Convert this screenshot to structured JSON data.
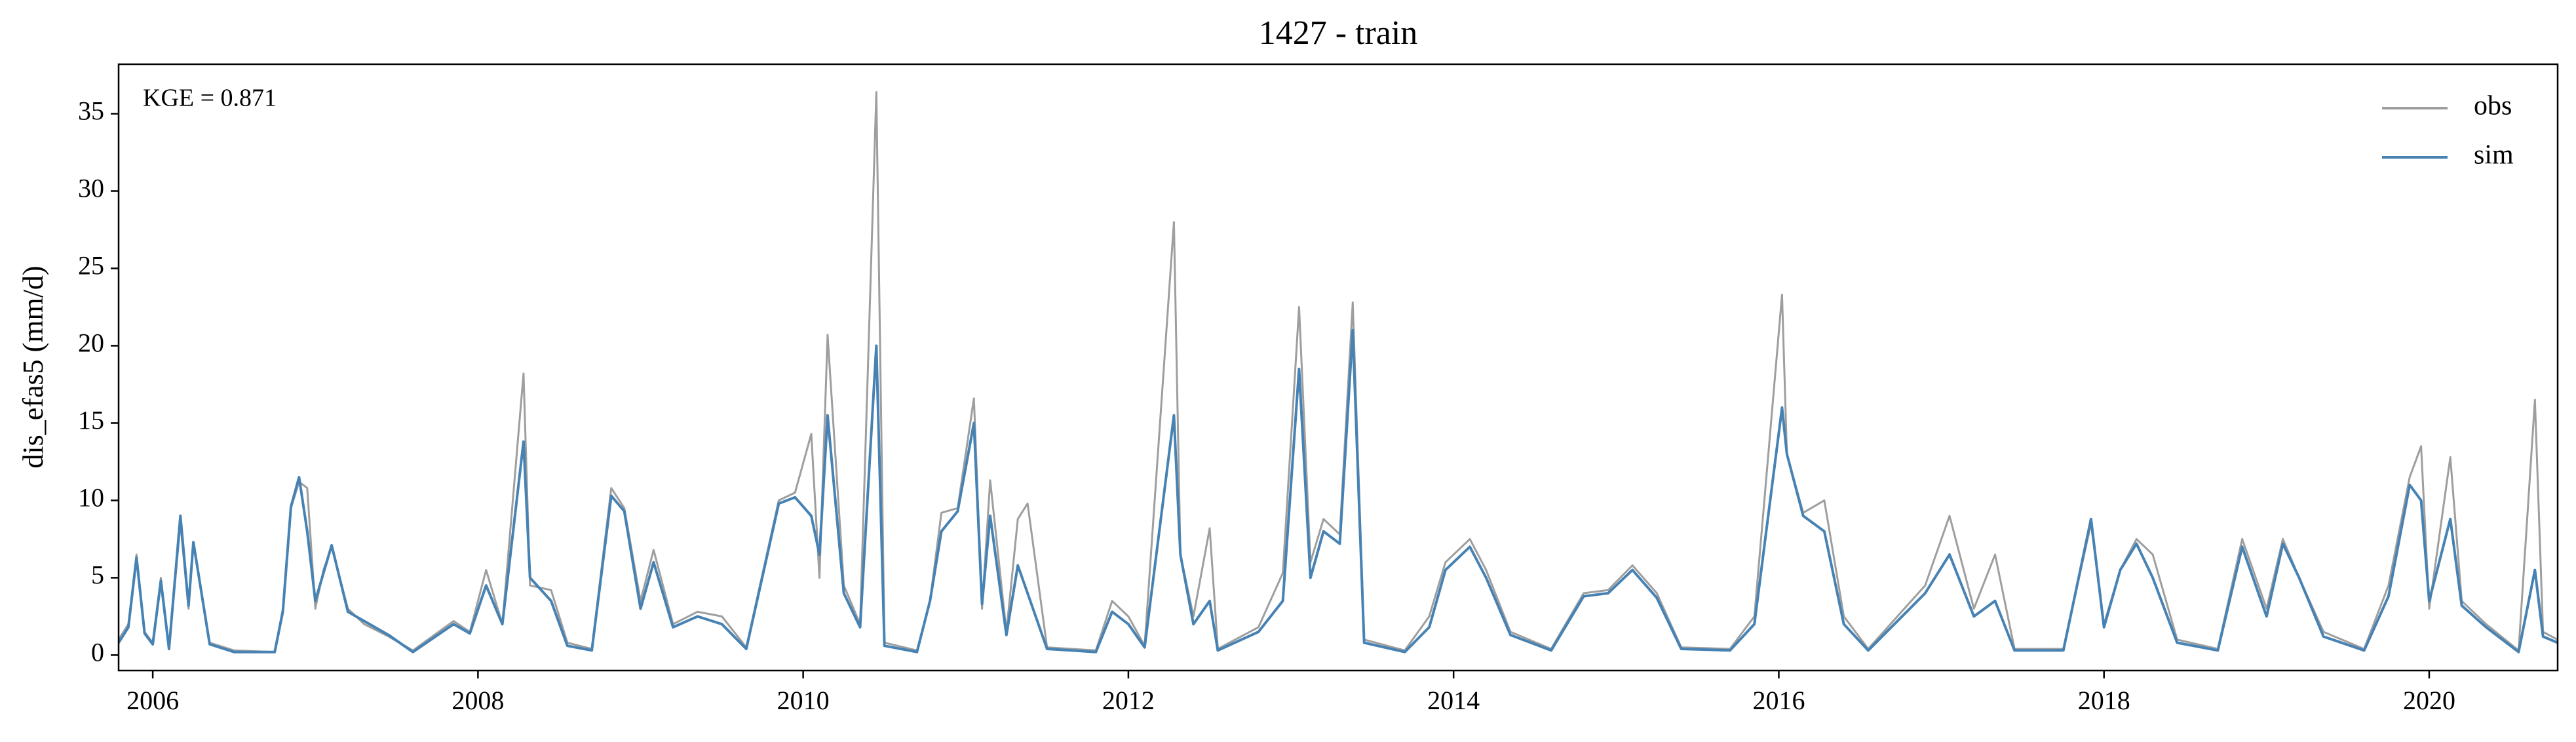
{
  "chart_data": {
    "type": "line",
    "title": "1427 - train",
    "y_label": "dis_efas5 (mm/d)",
    "annotation": "KGE = 0.871",
    "legend": "upper right",
    "xlim": [
      2005.79,
      2020.79
    ],
    "xticks": [
      2006,
      2008,
      2010,
      2012,
      2014,
      2016,
      2018,
      2020
    ],
    "ylim": [
      -1,
      38.2
    ],
    "yticks": [
      0,
      5,
      10,
      15,
      20,
      25,
      30,
      35
    ],
    "x": [
      2005.79,
      2005.85,
      2005.9,
      2005.95,
      2006.0,
      2006.05,
      2006.1,
      2006.17,
      2006.22,
      2006.25,
      2006.35,
      2006.5,
      2006.75,
      2006.8,
      2006.85,
      2006.9,
      2006.95,
      2007.0,
      2007.05,
      2007.1,
      2007.2,
      2007.3,
      2007.45,
      2007.6,
      2007.85,
      2007.95,
      2008.05,
      2008.15,
      2008.28,
      2008.32,
      2008.45,
      2008.55,
      2008.7,
      2008.82,
      2008.9,
      2009.0,
      2009.08,
      2009.2,
      2009.35,
      2009.5,
      2009.65,
      2009.85,
      2009.95,
      2010.05,
      2010.1,
      2010.15,
      2010.25,
      2010.35,
      2010.45,
      2010.5,
      2010.7,
      2010.78,
      2010.85,
      2010.95,
      2011.05,
      2011.1,
      2011.15,
      2011.25,
      2011.32,
      2011.38,
      2011.5,
      2011.8,
      2011.9,
      2012.0,
      2012.1,
      2012.28,
      2012.32,
      2012.4,
      2012.5,
      2012.55,
      2012.8,
      2012.95,
      2013.05,
      2013.12,
      2013.2,
      2013.3,
      2013.38,
      2013.45,
      2013.7,
      2013.85,
      2013.95,
      2014.1,
      2014.2,
      2014.35,
      2014.6,
      2014.8,
      2014.95,
      2015.1,
      2015.25,
      2015.4,
      2015.7,
      2015.85,
      2016.02,
      2016.05,
      2016.15,
      2016.28,
      2016.4,
      2016.55,
      2016.9,
      2017.05,
      2017.2,
      2017.33,
      2017.45,
      2017.75,
      2017.92,
      2018.0,
      2018.1,
      2018.2,
      2018.3,
      2018.45,
      2018.7,
      2018.85,
      2019.0,
      2019.1,
      2019.2,
      2019.35,
      2019.6,
      2019.75,
      2019.88,
      2019.95,
      2020.0,
      2020.13,
      2020.2,
      2020.35,
      2020.55,
      2020.65,
      2020.7,
      2020.79
    ],
    "series": [
      {
        "name": "obs",
        "color": "#9e9e9e",
        "values": [
          1.0,
          2.0,
          6.5,
          1.5,
          0.8,
          5.0,
          0.5,
          8.5,
          3.0,
          7.3,
          0.8,
          0.3,
          0.2,
          3.0,
          9.5,
          11.2,
          10.8,
          3.0,
          5.5,
          7.0,
          3.0,
          2.0,
          1.2,
          0.3,
          2.2,
          1.5,
          5.5,
          2.0,
          18.2,
          4.5,
          4.2,
          0.8,
          0.4,
          10.8,
          9.5,
          3.5,
          6.8,
          2.0,
          2.8,
          2.5,
          0.5,
          10.0,
          10.5,
          14.3,
          5.0,
          20.7,
          4.5,
          2.0,
          36.4,
          0.8,
          0.3,
          3.5,
          9.2,
          9.5,
          16.6,
          3.0,
          11.3,
          1.5,
          8.8,
          9.8,
          0.5,
          0.3,
          3.5,
          2.5,
          0.6,
          28.0,
          6.5,
          2.5,
          8.2,
          0.4,
          1.8,
          5.3,
          22.5,
          6.0,
          8.8,
          7.8,
          22.8,
          1.0,
          0.3,
          2.5,
          6.0,
          7.5,
          5.5,
          1.5,
          0.4,
          4.0,
          4.2,
          5.8,
          4.0,
          0.5,
          0.4,
          2.5,
          23.3,
          13.0,
          9.2,
          10.0,
          2.5,
          0.4,
          4.5,
          9.0,
          3.0,
          6.5,
          0.4,
          0.4,
          8.5,
          2.0,
          5.5,
          7.5,
          6.5,
          1.0,
          0.4,
          7.5,
          3.0,
          7.5,
          5.0,
          1.5,
          0.4,
          4.5,
          11.5,
          13.5,
          3.0,
          12.8,
          3.5,
          2.0,
          0.3,
          16.5,
          1.5,
          1.0
        ]
      },
      {
        "name": "sim",
        "color": "#4682b4",
        "values": [
          0.8,
          1.8,
          6.3,
          1.4,
          0.7,
          4.8,
          0.4,
          9.0,
          3.2,
          7.3,
          0.7,
          0.2,
          0.2,
          2.8,
          9.6,
          11.5,
          8.0,
          3.5,
          5.3,
          7.1,
          2.8,
          2.2,
          1.3,
          0.2,
          2.0,
          1.4,
          4.5,
          2.0,
          13.8,
          5.0,
          3.5,
          0.6,
          0.3,
          10.3,
          9.3,
          3.0,
          6.0,
          1.8,
          2.5,
          2.0,
          0.4,
          9.8,
          10.2,
          9.0,
          6.5,
          15.5,
          4.0,
          1.8,
          20.0,
          0.6,
          0.2,
          3.5,
          8.0,
          9.3,
          15.0,
          3.3,
          9.0,
          1.3,
          5.8,
          4.0,
          0.4,
          0.2,
          2.8,
          2.0,
          0.5,
          15.5,
          6.5,
          2.0,
          3.5,
          0.3,
          1.5,
          3.5,
          18.5,
          5.0,
          8.0,
          7.2,
          21.0,
          0.8,
          0.2,
          1.8,
          5.5,
          7.0,
          5.0,
          1.3,
          0.3,
          3.8,
          4.0,
          5.5,
          3.7,
          0.4,
          0.3,
          2.0,
          16.0,
          13.0,
          9.0,
          8.0,
          2.0,
          0.3,
          4.0,
          6.5,
          2.5,
          3.5,
          0.3,
          0.3,
          8.8,
          1.8,
          5.5,
          7.2,
          5.0,
          0.8,
          0.3,
          7.0,
          2.5,
          7.2,
          5.0,
          1.2,
          0.3,
          3.8,
          11.0,
          10.0,
          3.5,
          8.8,
          3.2,
          1.8,
          0.2,
          5.5,
          1.2,
          0.8
        ]
      }
    ]
  }
}
